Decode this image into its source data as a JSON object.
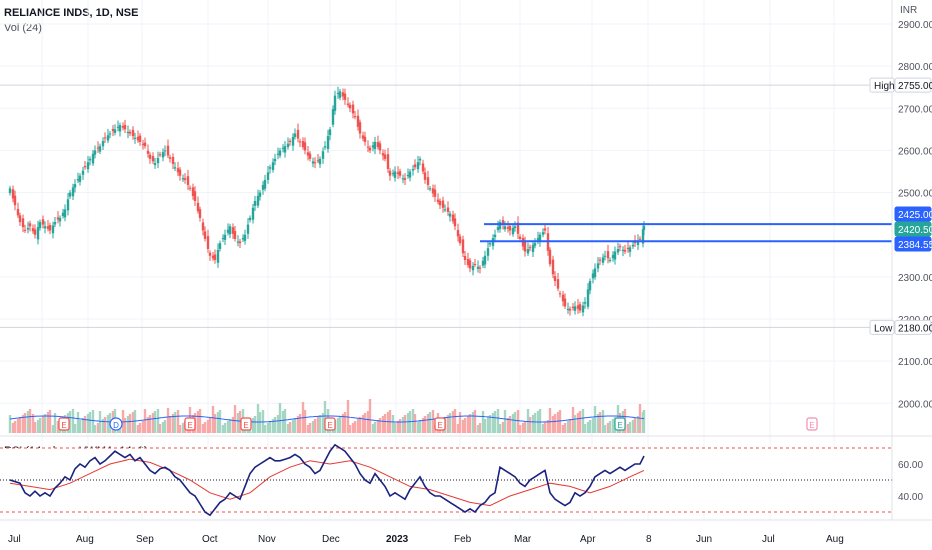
{
  "header": {
    "symbol_line": "RELIANCE INDS, 1D, NSE",
    "volume_label": "Vol (24)",
    "currency": "INR"
  },
  "rsi": {
    "legend": "RSI (14, close, VWMA, 14, 2)",
    "ticks": [
      "60.00",
      "40.00"
    ]
  },
  "colors": {
    "up": "#26a69a",
    "down": "#ef5350",
    "rsi_line": "#1a237e",
    "rsi_ma": "#e53935",
    "vol_ma": "#2962ff",
    "level_line": "#2962ff"
  },
  "chart_data": [
    {
      "type": "candlestick",
      "title": "RELIANCE INDS, 1D, NSE",
      "ylabel": "INR",
      "x_ticks": [
        "Jul",
        "Aug",
        "Sep",
        "Oct",
        "Nov",
        "Dec",
        "2023",
        "Feb",
        "Mar",
        "Apr",
        "8",
        "Jun",
        "Jul",
        "Aug"
      ],
      "y_ticks": [
        "2900.00",
        "2800.00",
        "2700.00",
        "2600.00",
        "2500.00",
        "2300.00",
        "2200.00",
        "2100.00",
        "2000.00"
      ],
      "ylim": [
        1950,
        2920
      ],
      "price_labels": [
        {
          "name": "High",
          "value": "2755.00"
        },
        {
          "name": "",
          "value": "2425.00"
        },
        {
          "name": "",
          "value": "2420.50"
        },
        {
          "name": "",
          "value": "2384.55"
        },
        {
          "name": "Low",
          "value": "2180.00"
        }
      ],
      "horizontal_levels": [
        2425,
        2384.55
      ],
      "close_path": [
        [
          0,
          2510
        ],
        [
          5,
          2470
        ],
        [
          10,
          2430
        ],
        [
          15,
          2410
        ],
        [
          20,
          2420
        ],
        [
          25,
          2400
        ],
        [
          30,
          2430
        ],
        [
          35,
          2420
        ],
        [
          40,
          2410
        ],
        [
          45,
          2430
        ],
        [
          50,
          2440
        ],
        [
          55,
          2460
        ],
        [
          60,
          2500
        ],
        [
          65,
          2520
        ],
        [
          70,
          2540
        ],
        [
          75,
          2560
        ],
        [
          80,
          2580
        ],
        [
          85,
          2600
        ],
        [
          90,
          2610
        ],
        [
          95,
          2630
        ],
        [
          100,
          2640
        ],
        [
          105,
          2650
        ],
        [
          110,
          2660
        ],
        [
          115,
          2650
        ],
        [
          120,
          2640
        ],
        [
          125,
          2630
        ],
        [
          130,
          2620
        ],
        [
          135,
          2610
        ],
        [
          140,
          2580
        ],
        [
          145,
          2570
        ],
        [
          150,
          2590
        ],
        [
          155,
          2600
        ],
        [
          160,
          2580
        ],
        [
          165,
          2560
        ],
        [
          170,
          2540
        ],
        [
          175,
          2530
        ],
        [
          180,
          2510
        ],
        [
          185,
          2480
        ],
        [
          190,
          2440
        ],
        [
          195,
          2390
        ],
        [
          200,
          2350
        ],
        [
          205,
          2340
        ],
        [
          210,
          2380
        ],
        [
          215,
          2400
        ],
        [
          220,
          2420
        ],
        [
          225,
          2390
        ],
        [
          230,
          2380
        ],
        [
          235,
          2400
        ],
        [
          240,
          2440
        ],
        [
          245,
          2480
        ],
        [
          250,
          2500
        ],
        [
          255,
          2530
        ],
        [
          260,
          2560
        ],
        [
          265,
          2580
        ],
        [
          270,
          2600
        ],
        [
          275,
          2610
        ],
        [
          280,
          2620
        ],
        [
          285,
          2640
        ],
        [
          290,
          2620
        ],
        [
          295,
          2600
        ],
        [
          300,
          2580
        ],
        [
          305,
          2570
        ],
        [
          310,
          2580
        ],
        [
          315,
          2610
        ],
        [
          320,
          2650
        ],
        [
          325,
          2730
        ],
        [
          330,
          2740
        ],
        [
          335,
          2720
        ],
        [
          340,
          2700
        ],
        [
          345,
          2680
        ],
        [
          350,
          2640
        ],
        [
          355,
          2620
        ],
        [
          360,
          2600
        ],
        [
          365,
          2620
        ],
        [
          370,
          2600
        ],
        [
          375,
          2580
        ],
        [
          380,
          2540
        ],
        [
          385,
          2550
        ],
        [
          390,
          2540
        ],
        [
          395,
          2530
        ],
        [
          400,
          2550
        ],
        [
          405,
          2560
        ],
        [
          410,
          2580
        ],
        [
          415,
          2530
        ],
        [
          420,
          2510
        ],
        [
          425,
          2490
        ],
        [
          430,
          2470
        ],
        [
          435,
          2460
        ],
        [
          440,
          2450
        ],
        [
          445,
          2420
        ],
        [
          450,
          2380
        ],
        [
          455,
          2340
        ],
        [
          460,
          2320
        ],
        [
          465,
          2330
        ],
        [
          470,
          2320
        ],
        [
          475,
          2350
        ],
        [
          480,
          2380
        ],
        [
          485,
          2400
        ],
        [
          490,
          2430
        ],
        [
          495,
          2420
        ],
        [
          500,
          2410
        ],
        [
          505,
          2420
        ],
        [
          510,
          2390
        ],
        [
          515,
          2360
        ],
        [
          520,
          2370
        ],
        [
          525,
          2380
        ],
        [
          530,
          2400
        ],
        [
          535,
          2410
        ],
        [
          540,
          2330
        ],
        [
          545,
          2290
        ],
        [
          550,
          2260
        ],
        [
          555,
          2230
        ],
        [
          560,
          2220
        ],
        [
          565,
          2230
        ],
        [
          570,
          2220
        ],
        [
          575,
          2240
        ],
        [
          580,
          2290
        ],
        [
          585,
          2320
        ],
        [
          590,
          2340
        ],
        [
          595,
          2350
        ],
        [
          600,
          2340
        ],
        [
          605,
          2360
        ],
        [
          610,
          2370
        ],
        [
          615,
          2360
        ],
        [
          620,
          2370
        ],
        [
          625,
          2380
        ],
        [
          630,
          2390
        ],
        [
          634,
          2420.5
        ]
      ]
    },
    {
      "type": "line",
      "title": "RSI (14, close, VWMA, 14, 2)",
      "y_ticks": [
        "60.00",
        "40.00"
      ],
      "levels": [
        70,
        50,
        30
      ],
      "series": [
        {
          "values": [
            [
              0,
              50
            ],
            [
              10,
              48
            ],
            [
              15,
              42
            ],
            [
              20,
              40
            ],
            [
              25,
              43
            ],
            [
              30,
              40
            ],
            [
              35,
              42
            ],
            [
              40,
              40
            ],
            [
              45,
              45
            ],
            [
              50,
              48
            ],
            [
              55,
              52
            ],
            [
              60,
              50
            ],
            [
              65,
              57
            ],
            [
              70,
              60
            ],
            [
              75,
              58
            ],
            [
              80,
              62
            ],
            [
              85,
              64
            ],
            [
              90,
              60
            ],
            [
              95,
              62
            ],
            [
              100,
              65
            ],
            [
              105,
              68
            ],
            [
              110,
              66
            ],
            [
              115,
              64
            ],
            [
              120,
              66
            ],
            [
              125,
              62
            ],
            [
              130,
              64
            ],
            [
              135,
              60
            ],
            [
              140,
              56
            ],
            [
              145,
              54
            ],
            [
              150,
              57
            ],
            [
              155,
              58
            ],
            [
              160,
              56
            ],
            [
              165,
              52
            ],
            [
              170,
              50
            ],
            [
              175,
              46
            ],
            [
              180,
              42
            ],
            [
              185,
              40
            ],
            [
              190,
              35
            ],
            [
              195,
              30
            ],
            [
              200,
              28
            ],
            [
              205,
              32
            ],
            [
              210,
              36
            ],
            [
              215,
              38
            ],
            [
              220,
              42
            ],
            [
              225,
              40
            ],
            [
              230,
              38
            ],
            [
              235,
              46
            ],
            [
              240,
              54
            ],
            [
              245,
              58
            ],
            [
              250,
              60
            ],
            [
              255,
              62
            ],
            [
              260,
              64
            ],
            [
              265,
              62
            ],
            [
              270,
              62
            ],
            [
              275,
              63
            ],
            [
              280,
              64
            ],
            [
              285,
              66
            ],
            [
              290,
              64
            ],
            [
              295,
              60
            ],
            [
              300,
              58
            ],
            [
              305,
              54
            ],
            [
              310,
              56
            ],
            [
              315,
              62
            ],
            [
              320,
              68
            ],
            [
              325,
              72
            ],
            [
              330,
              70
            ],
            [
              335,
              68
            ],
            [
              340,
              64
            ],
            [
              345,
              60
            ],
            [
              350,
              54
            ],
            [
              355,
              50
            ],
            [
              360,
              48
            ],
            [
              365,
              54
            ],
            [
              370,
              50
            ],
            [
              375,
              46
            ],
            [
              380,
              40
            ],
            [
              385,
              42
            ],
            [
              390,
              40
            ],
            [
              395,
              38
            ],
            [
              400,
              44
            ],
            [
              405,
              48
            ],
            [
              410,
              52
            ],
            [
              415,
              46
            ],
            [
              420,
              42
            ],
            [
              425,
              40
            ],
            [
              430,
              40
            ],
            [
              435,
              38
            ],
            [
              440,
              36
            ],
            [
              445,
              34
            ],
            [
              450,
              32
            ],
            [
              455,
              30
            ],
            [
              460,
              32
            ],
            [
              465,
              30
            ],
            [
              470,
              34
            ],
            [
              475,
              36
            ],
            [
              480,
              40
            ],
            [
              485,
              42
            ],
            [
              490,
              58
            ],
            [
              495,
              56
            ],
            [
              500,
              54
            ],
            [
              505,
              52
            ],
            [
              510,
              48
            ],
            [
              515,
              46
            ],
            [
              520,
              50
            ],
            [
              525,
              52
            ],
            [
              530,
              54
            ],
            [
              535,
              56
            ],
            [
              540,
              42
            ],
            [
              545,
              38
            ],
            [
              550,
              36
            ],
            [
              555,
              34
            ],
            [
              560,
              36
            ],
            [
              565,
              42
            ],
            [
              570,
              40
            ],
            [
              575,
              42
            ],
            [
              580,
              46
            ],
            [
              585,
              52
            ],
            [
              590,
              54
            ],
            [
              595,
              56
            ],
            [
              600,
              54
            ],
            [
              605,
              56
            ],
            [
              610,
              58
            ],
            [
              615,
              56
            ],
            [
              620,
              58
            ],
            [
              625,
              60
            ],
            [
              630,
              60
            ],
            [
              634,
              65
            ]
          ]
        },
        {
          "values": [
            [
              0,
              48
            ],
            [
              20,
              46
            ],
            [
              40,
              44
            ],
            [
              60,
              48
            ],
            [
              80,
              54
            ],
            [
              100,
              60
            ],
            [
              120,
              63
            ],
            [
              140,
              61
            ],
            [
              160,
              56
            ],
            [
              180,
              50
            ],
            [
              200,
              42
            ],
            [
              220,
              38
            ],
            [
              240,
              42
            ],
            [
              260,
              52
            ],
            [
              280,
              58
            ],
            [
              300,
              62
            ],
            [
              320,
              60
            ],
            [
              340,
              62
            ],
            [
              360,
              58
            ],
            [
              380,
              52
            ],
            [
              400,
              46
            ],
            [
              420,
              44
            ],
            [
              440,
              40
            ],
            [
              460,
              36
            ],
            [
              480,
              34
            ],
            [
              500,
              40
            ],
            [
              520,
              44
            ],
            [
              540,
              48
            ],
            [
              560,
              46
            ],
            [
              580,
              42
            ],
            [
              600,
              46
            ],
            [
              620,
              52
            ],
            [
              634,
              56
            ]
          ]
        }
      ]
    }
  ]
}
